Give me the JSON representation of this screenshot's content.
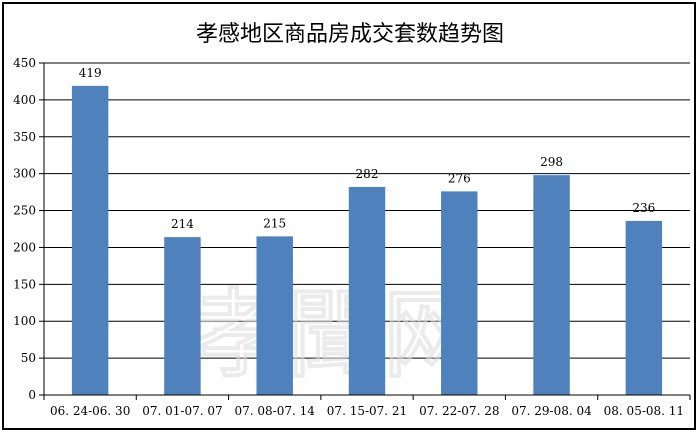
{
  "chart_data": {
    "type": "bar",
    "title": "孝感地区商品房成交套数趋势图",
    "categories": [
      "06.24-06.30",
      "07.01-07.07",
      "07.08-07.14",
      "07.15-07.21",
      "07.22-07.28",
      "07.29-08.04",
      "08.05-08.11"
    ],
    "tick_labels": [
      "06. 24-06. 30",
      "07. 01-07. 07",
      "07. 08-07. 14",
      "07. 15-07. 21",
      "07. 22-07. 28",
      "07. 29-08. 04",
      "08. 05-08. 11"
    ],
    "values": [
      419,
      214,
      215,
      282,
      276,
      298,
      236
    ],
    "ylim": [
      0,
      450
    ],
    "yticks": [
      0,
      50,
      100,
      150,
      200,
      250,
      300,
      350,
      400,
      450
    ],
    "grid": true,
    "legend": "none",
    "bar_color": "#4f81bd",
    "watermark": "孝聞网"
  }
}
